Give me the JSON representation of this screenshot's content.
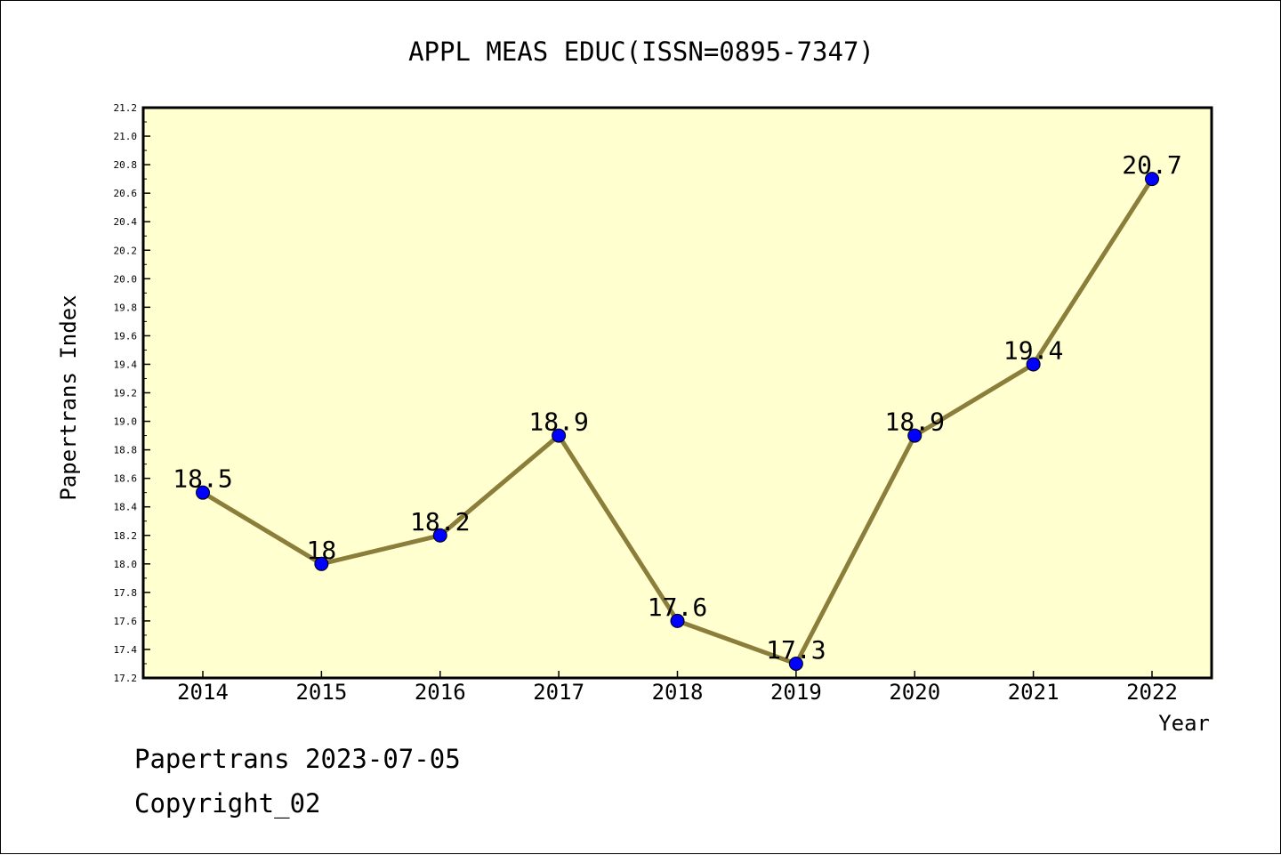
{
  "chart_data": {
    "type": "line",
    "title": "APPL MEAS EDUC(ISSN=0895-7347)",
    "xlabel": "Year",
    "ylabel": "Papertrans Index",
    "x": [
      "2014",
      "2015",
      "2016",
      "2017",
      "2018",
      "2019",
      "2020",
      "2021",
      "2022"
    ],
    "values": [
      18.5,
      18.0,
      18.2,
      18.9,
      17.6,
      17.3,
      18.9,
      19.4,
      20.7
    ],
    "data_labels": [
      "18.5",
      "18",
      "18.2",
      "18.9",
      "17.6",
      "17.3",
      "18.9",
      "19.4",
      "20.7"
    ],
    "ylim": [
      17.2,
      21.2
    ],
    "yticks": [
      "17.2",
      "17.4",
      "17.6",
      "17.8",
      "18.0",
      "18.2",
      "18.4",
      "18.6",
      "18.8",
      "19.0",
      "19.2",
      "19.4",
      "19.6",
      "19.8",
      "20.0",
      "20.2",
      "20.4",
      "20.6",
      "20.8",
      "21.0",
      "21.2"
    ],
    "grid": false,
    "colors": {
      "plot_background": "#ffffd0",
      "line": "#8b7d3a",
      "marker": "#0000ff"
    }
  },
  "footer": {
    "line1": "Papertrans 2023-07-05",
    "line2": "Copyright_02"
  }
}
